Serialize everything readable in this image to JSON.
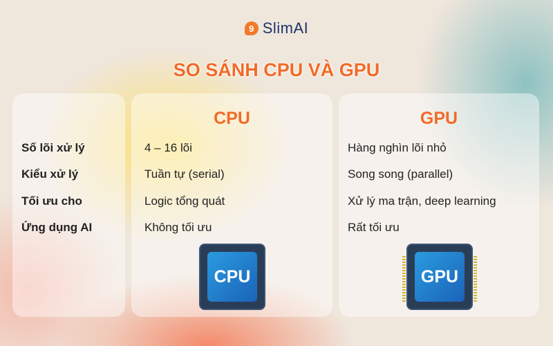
{
  "brand": {
    "logo_mark": "9",
    "name": "SlimAI"
  },
  "title": "SO SÁNH CPU VÀ GPU",
  "labels": [
    "Số lõi xử lý",
    "Kiểu xử lý",
    "Tối ưu cho",
    "Ứng dụng AI"
  ],
  "cpu": {
    "heading": "CPU",
    "values": [
      "4 – 16 lõi",
      "Tuần tự (serial)",
      "Logic tổng quát",
      "Không tối ưu"
    ],
    "chip_label": "CPU"
  },
  "gpu": {
    "heading": "GPU",
    "values": [
      "Hàng nghìn lõi nhỏ",
      "Song song (parallel)",
      "Xử lý ma trận, deep learning",
      "Rất tối ưu"
    ],
    "chip_label": "GPU"
  },
  "colors": {
    "accent": "#f26a26",
    "brand": "#1d3566"
  }
}
